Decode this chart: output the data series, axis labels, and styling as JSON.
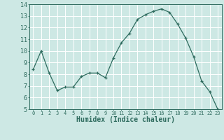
{
  "x": [
    0,
    1,
    2,
    3,
    4,
    5,
    6,
    7,
    8,
    9,
    10,
    11,
    12,
    13,
    14,
    15,
    16,
    17,
    18,
    19,
    20,
    21,
    22,
    23
  ],
  "y": [
    8.4,
    10.0,
    8.1,
    6.6,
    6.9,
    6.9,
    7.8,
    8.1,
    8.1,
    7.7,
    9.4,
    10.7,
    11.5,
    12.7,
    13.1,
    13.4,
    13.6,
    13.3,
    12.3,
    11.1,
    9.5,
    7.4,
    6.5,
    5.0
  ],
  "line_color": "#2e6b5e",
  "marker": "+",
  "marker_size": 3,
  "bg_color": "#cde8e4",
  "grid_color": "#ffffff",
  "tick_color": "#2e6b5e",
  "xlabel": "Humidex (Indice chaleur)",
  "xlabel_fontsize": 7,
  "xlim": [
    -0.5,
    23.5
  ],
  "ylim": [
    5,
    14
  ],
  "yticks": [
    5,
    6,
    7,
    8,
    9,
    10,
    11,
    12,
    13,
    14
  ],
  "xticks": [
    0,
    1,
    2,
    3,
    4,
    5,
    6,
    7,
    8,
    9,
    10,
    11,
    12,
    13,
    14,
    15,
    16,
    17,
    18,
    19,
    20,
    21,
    22,
    23
  ],
  "tick_fontsize": 5,
  "ytick_fontsize": 6
}
